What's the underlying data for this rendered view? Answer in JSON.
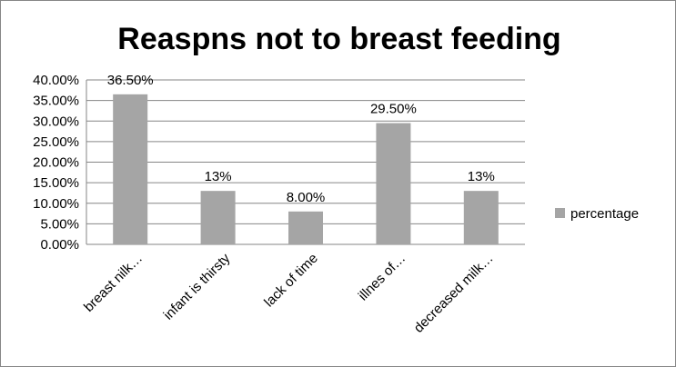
{
  "chart_data": {
    "type": "bar",
    "title": "Reaspns not to breast feeding",
    "categories": [
      "breast nilk…",
      "infant is thirsty",
      "lack of time",
      "illnes of…",
      "decreased milk…"
    ],
    "series": [
      {
        "name": "percentage",
        "values": [
          36.5,
          13,
          8,
          29.5,
          13
        ],
        "data_labels": [
          "36.50%",
          "13%",
          "8.00%",
          "29.50%",
          "13%"
        ],
        "color": "#a5a5a5"
      }
    ],
    "ylim": [
      0,
      40
    ],
    "y_ticks": [
      "0.00%",
      "5.00%",
      "10.00%",
      "15.00%",
      "20.00%",
      "25.00%",
      "30.00%",
      "35.00%",
      "40.00%"
    ],
    "y_tick_values": [
      0,
      5,
      10,
      15,
      20,
      25,
      30,
      35,
      40
    ],
    "grid": true,
    "legend_position": "right",
    "colors": {
      "bar": "#a5a5a5",
      "grid": "#868686",
      "text": "#000000"
    }
  }
}
